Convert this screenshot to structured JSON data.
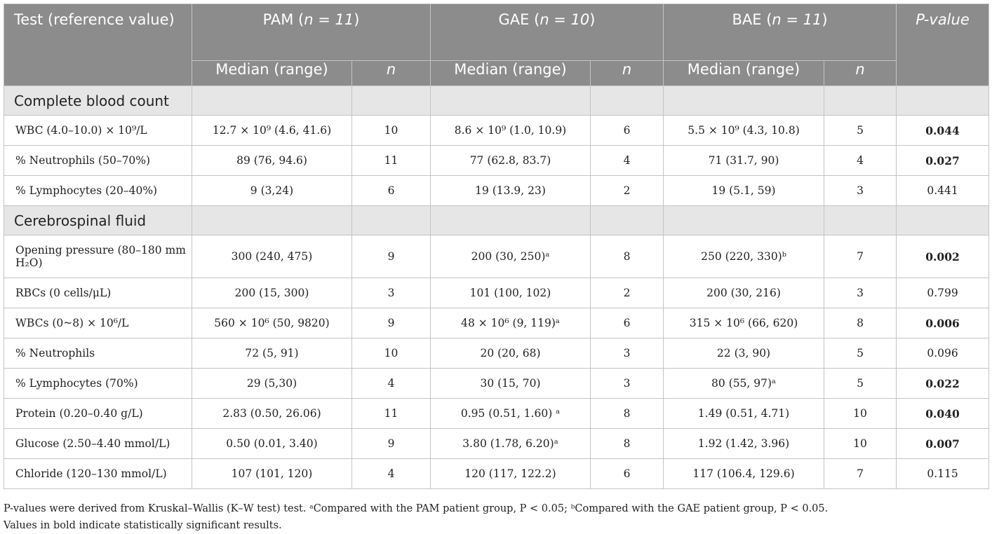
{
  "header": {
    "test_col": "Test (reference value)",
    "groups": [
      {
        "name": "PAM",
        "n_label": "n = 11"
      },
      {
        "name": "GAE",
        "n_label": "n = 10"
      },
      {
        "name": "BAE",
        "n_label": "n = 11"
      }
    ],
    "pvalue_col": "P-value",
    "median_label": "Median (range)",
    "n_label": "n"
  },
  "sections": [
    {
      "title": "Complete blood count",
      "rows": [
        {
          "test": "WBC (4.0–10.0) × 10⁹/L",
          "pam": "12.7 × 10⁹ (4.6, 41.6)",
          "pam_n": "10",
          "gae": "8.6 × 10⁹ (1.0, 10.9)",
          "gae_n": "6",
          "bae": "5.5 × 10⁹ (4.3, 10.8)",
          "bae_n": "5",
          "p": "0.044",
          "sig": true
        },
        {
          "test": "% Neutrophils (50–70%)",
          "pam": "89 (76, 94.6)",
          "pam_n": "11",
          "gae": "77 (62.8, 83.7)",
          "gae_n": "4",
          "bae": "71 (31.7, 90)",
          "bae_n": "4",
          "p": "0.027",
          "sig": true
        },
        {
          "test": "% Lymphocytes (20–40%)",
          "pam": "9 (3,24)",
          "pam_n": "6",
          "gae": "19 (13.9, 23)",
          "gae_n": "2",
          "bae": "19 (5.1, 59)",
          "bae_n": "3",
          "p": "0.441",
          "sig": false
        }
      ]
    },
    {
      "title": "Cerebrospinal fluid",
      "rows": [
        {
          "test": "Opening pressure (80–180 mm H₂O)",
          "pam": "300 (240, 475)",
          "pam_n": "9",
          "gae": "200 (30, 250)ᵃ",
          "gae_n": "8",
          "bae": "250 (220, 330)ᵇ",
          "bae_n": "7",
          "p": "0.002",
          "sig": true
        },
        {
          "test": "RBCs (0 cells/μL)",
          "pam": "200 (15, 300)",
          "pam_n": "3",
          "gae": "101 (100, 102)",
          "gae_n": "2",
          "bae": "200 (30, 216)",
          "bae_n": "3",
          "p": "0.799",
          "sig": false
        },
        {
          "test": "WBCs (0~8) × 10⁶/L",
          "pam": "560 × 10⁶ (50, 9820)",
          "pam_n": "9",
          "gae": "48 × 10⁶ (9, 119)ᵃ",
          "gae_n": "6",
          "bae": "315 × 10⁶ (66, 620)",
          "bae_n": "8",
          "p": "0.006",
          "sig": true
        },
        {
          "test": "% Neutrophils",
          "pam": "72 (5, 91)",
          "pam_n": "10",
          "gae": "20 (20, 68)",
          "gae_n": "3",
          "bae": "22 (3, 90)",
          "bae_n": "5",
          "p": "0.096",
          "sig": false
        },
        {
          "test": "% Lymphocytes (70%)",
          "pam": "29 (5,30)",
          "pam_n": "4",
          "gae": "30 (15, 70)",
          "gae_n": "3",
          "bae": "80 (55, 97)ᵃ",
          "bae_n": "5",
          "p": "0.022",
          "sig": true
        },
        {
          "test": "Protein (0.20–0.40 g/L)",
          "pam": "2.83 (0.50, 26.06)",
          "pam_n": "11",
          "gae": "0.95 (0.51, 1.60) ᵃ",
          "gae_n": "8",
          "bae": "1.49 (0.51, 4.71)",
          "bae_n": "10",
          "p": "0.040",
          "sig": true
        },
        {
          "test": "Glucose (2.50–4.40 mmol/L)",
          "pam": "0.50 (0.01, 3.40)",
          "pam_n": "9",
          "gae": "3.80 (1.78, 6.20)ᵃ",
          "gae_n": "8",
          "bae": "1.92 (1.42, 3.96)",
          "bae_n": "10",
          "p": "0.007",
          "sig": true
        },
        {
          "test": "Chloride (120–130 mmol/L)",
          "pam": "107 (101, 120)",
          "pam_n": "4",
          "gae": "120 (117, 122.2)",
          "gae_n": "6",
          "bae": "117 (106.4, 129.6)",
          "bae_n": "7",
          "p": "0.115",
          "sig": false
        }
      ]
    }
  ],
  "footnotes": [
    "P-values were derived from Kruskal–Wallis (K–W test) test. ᵃCompared with the PAM patient group, P < 0.05; ᵇCompared with the GAE patient group, P < 0.05.",
    "Values in bold indicate statistically significant results."
  ]
}
